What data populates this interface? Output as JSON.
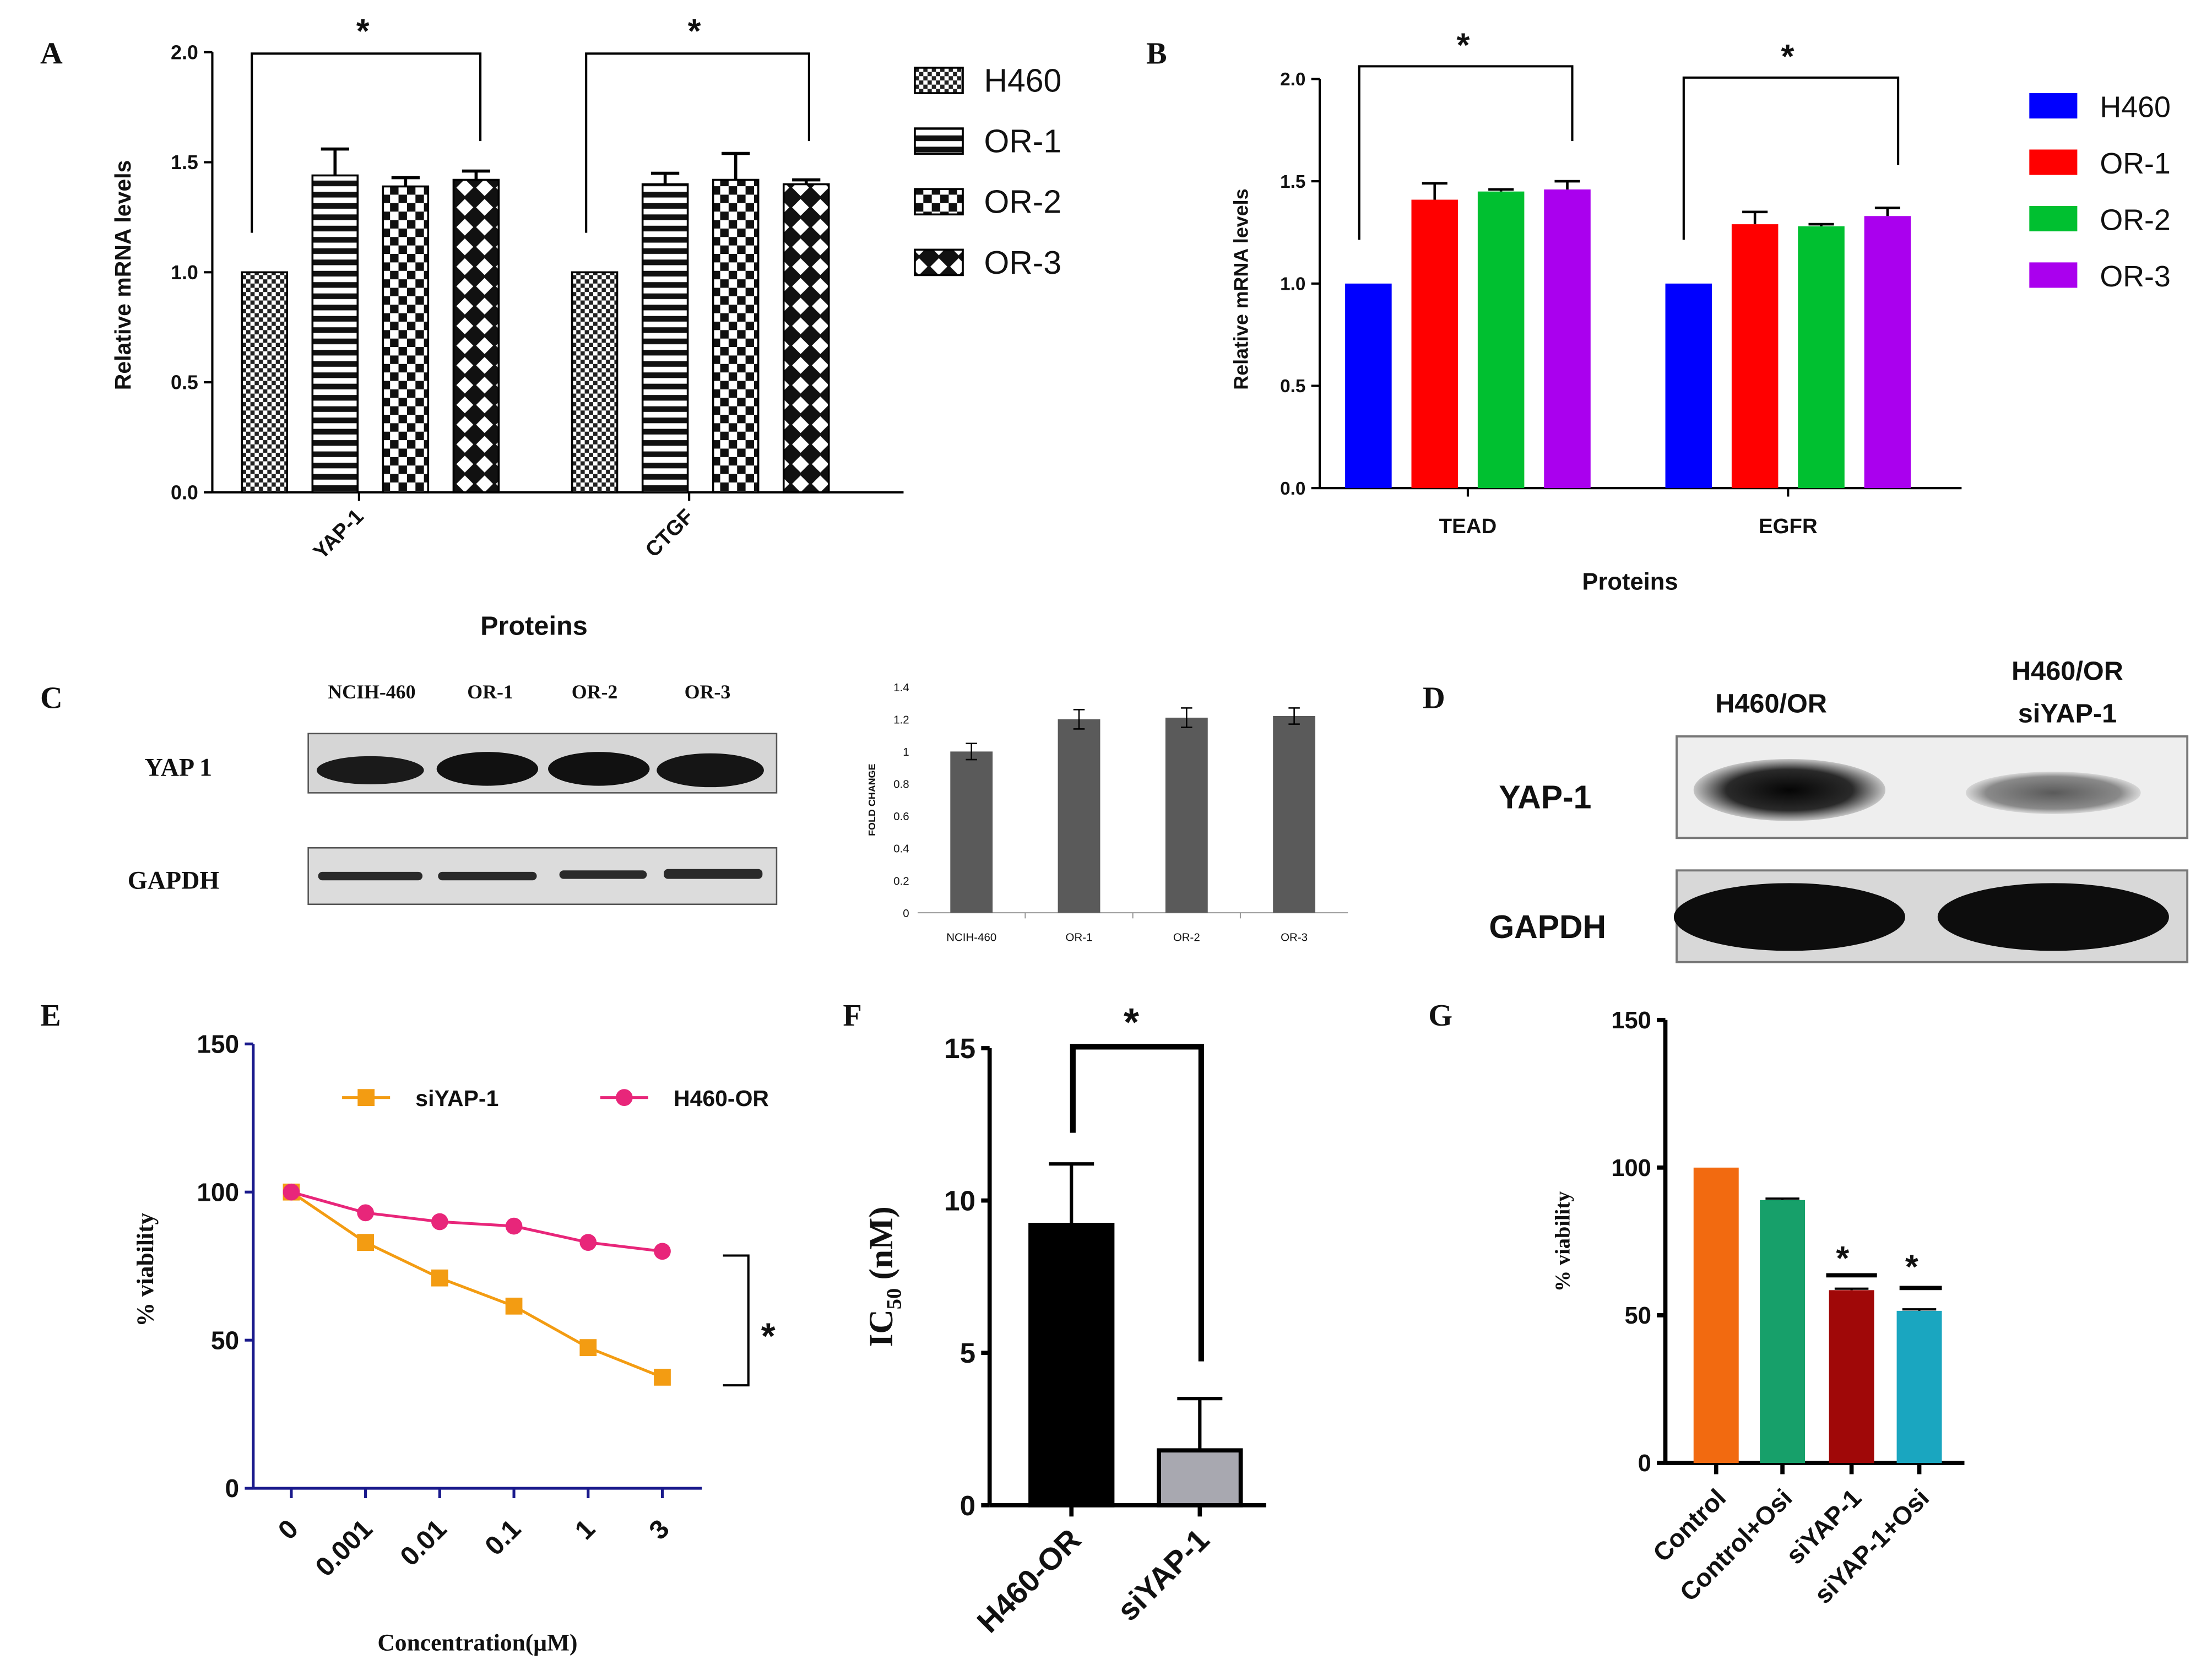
{
  "colors": {
    "b_h460": "#0000ff",
    "b_or1": "#ff0000",
    "b_or2": "#00c030",
    "b_or3": "#aa00ee",
    "e_siyap": "#f39c12",
    "e_h460or": "#e8267a",
    "e_axis": "#1a1a8c",
    "g_control": "#f26a10",
    "g_controlosi": "#17a06a",
    "g_siyap": "#a00808",
    "g_siyaposi": "#1aa6c0",
    "f_h460or": "#000000",
    "f_siyap": "#a8a8b0",
    "c_bars": "#5a5a5a"
  },
  "panels": {
    "a": {
      "letter": "A",
      "star1": "*",
      "star2": "*"
    },
    "b": {
      "letter": "B",
      "star1": "*",
      "star2": "*"
    },
    "c": {
      "letter": "C",
      "lanes": [
        "NCIH-460",
        "OR-1",
        "OR-2",
        "OR-3"
      ],
      "row1": "YAP 1",
      "row2": "GAPDH"
    },
    "d": {
      "letter": "D",
      "lane1": "H460/OR",
      "lane2_line1": "H460/OR",
      "lane2_line2": "siYAP-1",
      "row1": "YAP-1",
      "row2": "GAPDH"
    },
    "e": {
      "letter": "E",
      "star": "*"
    },
    "f": {
      "letter": "F",
      "star": "*"
    },
    "g": {
      "letter": "G",
      "star1": "*",
      "star2": "*"
    }
  },
  "chart_data": [
    {
      "id": "A",
      "type": "bar",
      "categories": [
        "YAP-1",
        "CTGF"
      ],
      "series": [
        {
          "name": "H460",
          "values": [
            1.0,
            1.0
          ],
          "errors": [
            0,
            0
          ]
        },
        {
          "name": "OR-1",
          "values": [
            1.44,
            1.4
          ],
          "errors": [
            0.12,
            0.05
          ]
        },
        {
          "name": "OR-2",
          "values": [
            1.39,
            1.42
          ],
          "errors": [
            0.04,
            0.12
          ]
        },
        {
          "name": "OR-3",
          "values": [
            1.42,
            1.4
          ],
          "errors": [
            0.04,
            0.02
          ]
        }
      ],
      "xlabel": "Proteins",
      "ylabel": "Relative mRNA levels",
      "ylim": [
        0,
        2.0
      ],
      "yticks": [
        "0.0",
        "0.5",
        "1.0",
        "1.5",
        "2.0"
      ],
      "legend_position": "right"
    },
    {
      "id": "B",
      "type": "bar",
      "categories": [
        "TEAD",
        "EGFR"
      ],
      "series": [
        {
          "name": "H460",
          "values": [
            1.0,
            1.0
          ],
          "errors": [
            0,
            0
          ]
        },
        {
          "name": "OR-1",
          "values": [
            1.41,
            1.29
          ],
          "errors": [
            0.08,
            0.06
          ]
        },
        {
          "name": "OR-2",
          "values": [
            1.45,
            1.28
          ],
          "errors": [
            0.01,
            0.01
          ]
        },
        {
          "name": "OR-3",
          "values": [
            1.46,
            1.33
          ],
          "errors": [
            0.04,
            0.04
          ]
        }
      ],
      "xlabel": "Proteins",
      "ylabel": "Relative mRNA levels",
      "ylim": [
        0,
        2.0
      ],
      "yticks": [
        "0.0",
        "0.5",
        "1.0",
        "1.5",
        "2.0"
      ],
      "legend_position": "right"
    },
    {
      "id": "C",
      "type": "bar",
      "categories": [
        "NCIH-460",
        "OR-1",
        "OR-2",
        "OR-3"
      ],
      "values": [
        1.0,
        1.2,
        1.21,
        1.22
      ],
      "errors": [
        0.05,
        0.06,
        0.06,
        0.05
      ],
      "ylabel": "FOLD CHANGE",
      "ylim": [
        0,
        1.4
      ],
      "yticks": [
        "0",
        "0.2",
        "0.4",
        "0.6",
        "0.8",
        "1",
        "1.2",
        "1.4"
      ]
    },
    {
      "id": "E",
      "type": "line",
      "x": [
        "0",
        "0.001",
        "0.01",
        "0.1",
        "1",
        "3"
      ],
      "series": [
        {
          "name": "siYAP-1",
          "values": [
            100,
            83,
            71,
            61.5,
            47.5,
            37.5
          ],
          "marker": "square"
        },
        {
          "name": "H460-OR",
          "values": [
            100,
            93,
            90,
            88.5,
            83,
            80
          ],
          "marker": "circle"
        }
      ],
      "xlabel": "Concentration(μM)",
      "ylabel": "% viability",
      "ylim": [
        0,
        150
      ],
      "yticks": [
        "0",
        "50",
        "100",
        "150"
      ],
      "legend_position": "top"
    },
    {
      "id": "F",
      "type": "bar",
      "categories": [
        "H460-OR",
        "siYAP-1"
      ],
      "values": [
        9.2,
        1.8
      ],
      "errors": [
        2.0,
        1.7
      ],
      "ylabel_main": "IC",
      "ylabel_sub": "50",
      "ylabel_unit": " (nM)",
      "ylim": [
        0,
        15
      ],
      "yticks": [
        "0",
        "5",
        "10",
        "15"
      ]
    },
    {
      "id": "G",
      "type": "bar",
      "categories": [
        "Control",
        "Control+Osi",
        "siYAP-1",
        "siYAP-1+Osi"
      ],
      "values": [
        100,
        89,
        58.5,
        51.5
      ],
      "errors": [
        0,
        0.5,
        0.5,
        0.5
      ],
      "ylabel": "% viability",
      "ylim": [
        0,
        150
      ],
      "yticks": [
        "0",
        "50",
        "100",
        "150"
      ]
    }
  ]
}
